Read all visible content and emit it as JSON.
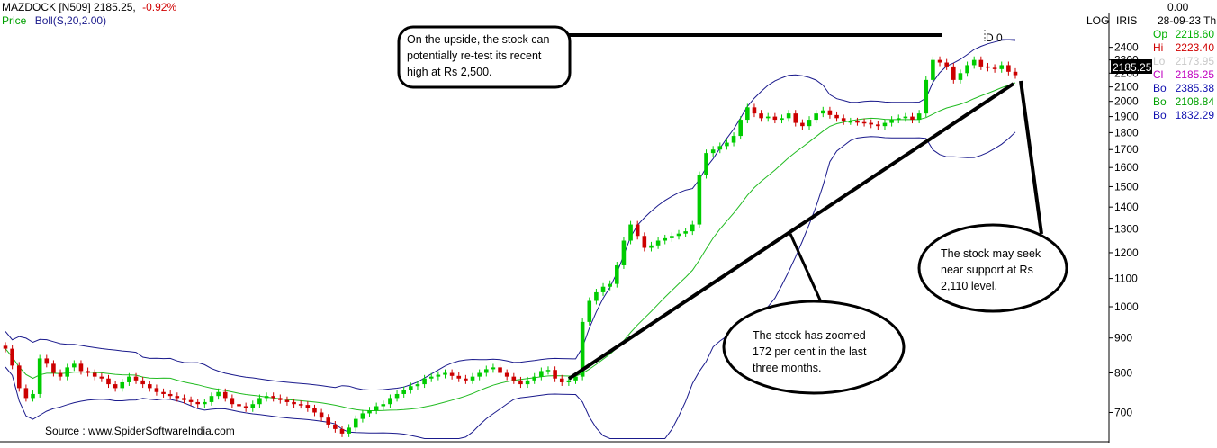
{
  "header": {
    "symbol": "MAZDOCK [N509]",
    "price": "2185.25,",
    "change": "-0.92%",
    "indicator_price": "Price",
    "indicator_boll": "Boll(S,20,2.00)"
  },
  "top_right": {
    "log_label": "LOG",
    "iris_label": "IRIS",
    "top_value": "0.00",
    "date": "28-09-23 Th"
  },
  "ohlc_panel": [
    {
      "label": "Op",
      "value": "2218.60",
      "color": "#00b000"
    },
    {
      "label": "Hi",
      "value": "2223.40",
      "color": "#d00000"
    },
    {
      "label": "Lo",
      "value": "2173.95",
      "color": "#c8c8c8"
    },
    {
      "label": "Cl",
      "value": "2185.25",
      "color": "#c000c0"
    },
    {
      "label": "Bo",
      "value": "2385.38",
      "color": "#1010b0"
    },
    {
      "label": "Bo",
      "value": "2108.84",
      "color": "#00a000"
    },
    {
      "label": "Bo",
      "value": "1832.29",
      "color": "#1010b0"
    }
  ],
  "source": "Source : www.SpiderSoftwareIndia.com",
  "current_price_badge": "2185.25",
  "marker_text": "D 0",
  "callouts": [
    {
      "lines": [
        "On the upside, the stock can",
        "potentially re-test its recent",
        "high at Rs 2,500."
      ]
    },
    {
      "lines": [
        "The stock has zoomed",
        "172 per cent in the last",
        "three months."
      ]
    },
    {
      "lines": [
        "The stock may seek",
        "near support at Rs",
        "2,110 level."
      ]
    }
  ],
  "colors": {
    "bullish": "#00cc00",
    "bearish": "#cc0000",
    "band": "#1a1a8c",
    "mid_band": "#22bb22"
  },
  "chart_data": {
    "type": "candlestick",
    "y_scale": "log",
    "ylim": [
      640,
      2650
    ],
    "y_ticks": [
      700,
      800,
      900,
      1000,
      1100,
      1200,
      1300,
      1400,
      1500,
      1600,
      1700,
      1800,
      1900,
      2000,
      2100,
      2200,
      2300,
      2400
    ],
    "last_close": 2185.25,
    "series": [
      {
        "name": "Price",
        "type": "candlestick"
      },
      {
        "name": "Boll(S,20,2.00)",
        "type": "bands",
        "upper_last": 2385.38,
        "middle_last": 2108.84,
        "lower_last": 1832.29
      }
    ],
    "closes": [
      868,
      820,
      760,
      735,
      745,
      840,
      825,
      800,
      790,
      815,
      825,
      805,
      800,
      790,
      785,
      770,
      760,
      775,
      790,
      780,
      770,
      760,
      750,
      745,
      740,
      735,
      730,
      725,
      720,
      725,
      740,
      750,
      735,
      720,
      715,
      710,
      720,
      735,
      740,
      735,
      730,
      725,
      720,
      718,
      710,
      700,
      688,
      672,
      662,
      652,
      665,
      685,
      698,
      705,
      715,
      720,
      735,
      745,
      755,
      765,
      770,
      785,
      790,
      795,
      800,
      792,
      785,
      780,
      790,
      800,
      810,
      815,
      800,
      790,
      780,
      770,
      780,
      790,
      805,
      808,
      785,
      775,
      780,
      790,
      950,
      1020,
      1050,
      1070,
      1080,
      1150,
      1250,
      1320,
      1270,
      1220,
      1230,
      1250,
      1260,
      1270,
      1280,
      1290,
      1320,
      1560,
      1680,
      1700,
      1720,
      1740,
      1780,
      1880,
      1960,
      1920,
      1890,
      1900,
      1880,
      1890,
      1920,
      1860,
      1840,
      1880,
      1920,
      1940,
      1910,
      1890,
      1870,
      1870,
      1865,
      1860,
      1850,
      1840,
      1860,
      1880,
      1890,
      1900,
      1880,
      1920,
      2150,
      2300,
      2280,
      2250,
      2150,
      2200,
      2260,
      2300,
      2250,
      2240,
      2230,
      2260,
      2210,
      2185
    ]
  }
}
